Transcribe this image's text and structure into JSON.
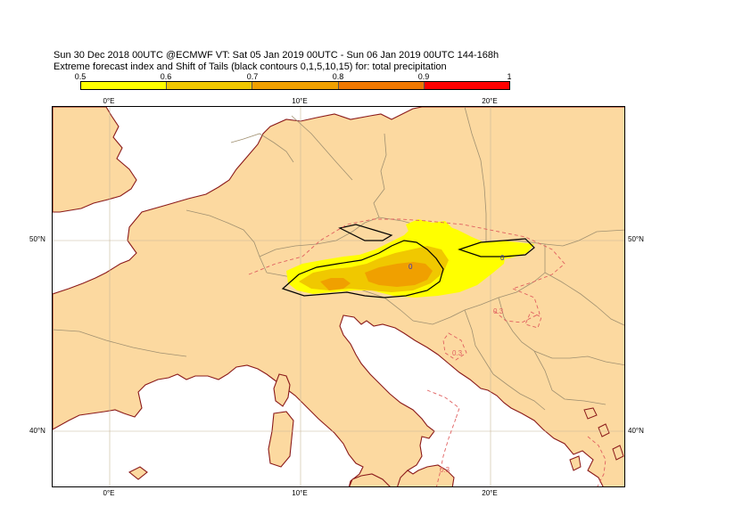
{
  "header": {
    "line1": "Sun 30 Dec 2018 00UTC @ECMWF VT: Sat 05 Jan 2019 00UTC - Sun 06 Jan 2019 00UTC  144-168h",
    "line2": "Extreme forecast index and Shift of Tails (black contours 0,1,5,10,15) for: total precipitation"
  },
  "colorbar": {
    "labels": [
      "0.5",
      "0.6",
      "0.7",
      "0.8",
      "0.9",
      "1"
    ],
    "colors": [
      "#ffff00",
      "#f0c800",
      "#f0a000",
      "#f07800",
      "#ff0000"
    ]
  },
  "axes": {
    "lon_top": [
      "0°E",
      "10°E",
      "20°E"
    ],
    "lon_bottom": [
      "0°E",
      "10°E",
      "20°E"
    ],
    "lat_left": [
      "50°N",
      "40°N"
    ],
    "lat_right": [
      "50°N",
      "40°N"
    ]
  },
  "contour_labels": [
    "0",
    "0",
    "0.3",
    "0.3",
    "0.3"
  ],
  "colors": {
    "land": "#fcd9a0",
    "sea": "#ffffff",
    "coast": "#8b1a1a",
    "border": "#a09070",
    "efi_contour": "#e06060",
    "sot_contour": "#000000"
  }
}
